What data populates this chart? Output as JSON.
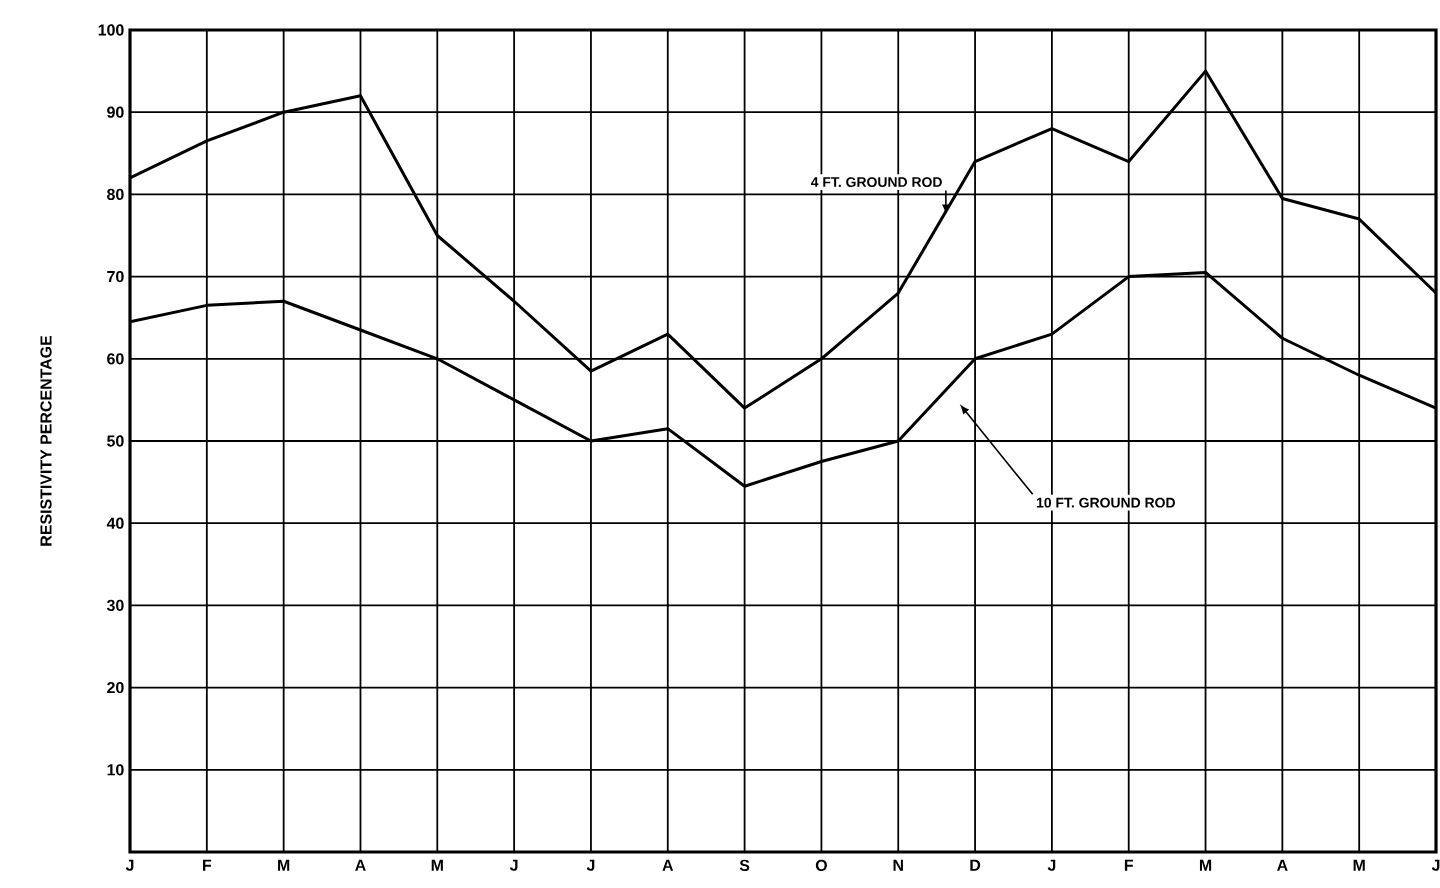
{
  "chart_data": {
    "type": "line",
    "ylabel": "RESISTIVITY PERCENTAGE",
    "categories": [
      "J",
      "F",
      "M",
      "A",
      "M",
      "J",
      "J",
      "A",
      "S",
      "O",
      "N",
      "D",
      "J",
      "F",
      "M",
      "A",
      "M",
      "J"
    ],
    "series": [
      {
        "name": "4 FT. GROUND ROD",
        "color": "#000000",
        "values": [
          82,
          86.5,
          90,
          92,
          75,
          67,
          58.5,
          63,
          54,
          60,
          68,
          84,
          88,
          84,
          95,
          79.5,
          77,
          68
        ]
      },
      {
        "name": "10 FT. GROUND ROD",
        "color": "#000000",
        "values": [
          64.5,
          66.5,
          67,
          63.5,
          60,
          55,
          50,
          51.5,
          44.5,
          47.5,
          50,
          60,
          63,
          70,
          70.5,
          62.5,
          58,
          54
        ]
      }
    ],
    "ylim": [
      0,
      100
    ],
    "yticks": [
      10,
      20,
      30,
      40,
      50,
      60,
      70,
      80,
      90,
      100
    ],
    "grid": true,
    "marker": "none",
    "line_style": "solid"
  }
}
